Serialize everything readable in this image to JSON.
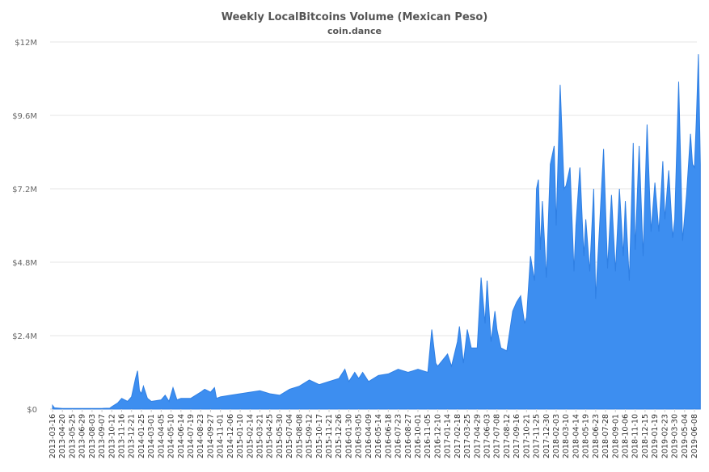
{
  "chart_data": {
    "type": "area",
    "title": "Weekly LocalBitcoins Volume (Mexican Peso)",
    "subtitle": "coin.dance",
    "xlabel": "",
    "ylabel": "",
    "color": "#3d8ef0",
    "grid": "horizontal",
    "legend": "none",
    "ylim": [
      0,
      12000000
    ],
    "y_ticks": [
      {
        "value": 0,
        "label": "$0"
      },
      {
        "value": 2400000,
        "label": "$2.4M"
      },
      {
        "value": 4800000,
        "label": "$4.8M"
      },
      {
        "value": 7200000,
        "label": "$7.2M"
      },
      {
        "value": 9600000,
        "label": "$9.6M"
      },
      {
        "value": 12000000,
        "label": "$12M"
      }
    ],
    "x_tick_labels": [
      "2013-03-16",
      "2013-04-20",
      "2013-05-25",
      "2013-06-29",
      "2013-08-03",
      "2013-09-07",
      "2013-10-12",
      "2013-11-16",
      "2013-12-21",
      "2014-01-25",
      "2014-03-01",
      "2014-04-05",
      "2014-05-10",
      "2014-06-14",
      "2014-07-19",
      "2014-08-23",
      "2014-09-27",
      "2014-11-01",
      "2014-12-06",
      "2015-01-10",
      "2015-02-14",
      "2015-03-21",
      "2015-04-25",
      "2015-05-30",
      "2015-07-04",
      "2015-08-08",
      "2015-09-12",
      "2015-10-17",
      "2015-11-21",
      "2015-12-26",
      "2016-01-30",
      "2016-03-05",
      "2016-04-09",
      "2016-05-14",
      "2016-06-18",
      "2016-07-23",
      "2016-08-27",
      "2016-10-01",
      "2016-11-05",
      "2016-12-10",
      "2017-01-14",
      "2017-02-18",
      "2017-03-25",
      "2017-04-29",
      "2017-06-03",
      "2017-07-08",
      "2017-08-12",
      "2017-09-16",
      "2017-10-21",
      "2017-11-25",
      "2017-12-30",
      "2018-02-03",
      "2018-03-10",
      "2018-04-14",
      "2018-05-19",
      "2018-06-23",
      "2018-07-28",
      "2018-09-01",
      "2018-10-06",
      "2018-11-10",
      "2018-12-15",
      "2019-01-19",
      "2019-02-23",
      "2019-03-30",
      "2019-05-04",
      "2019-06-08"
    ],
    "series": [
      {
        "keypoints": [
          [
            "2013-03-16",
            120000
          ],
          [
            "2013-03-23",
            40000
          ],
          [
            "2013-04-20",
            20000
          ],
          [
            "2013-06-29",
            20000
          ],
          [
            "2013-09-07",
            20000
          ],
          [
            "2013-10-05",
            30000
          ],
          [
            "2013-10-12",
            80000
          ],
          [
            "2013-11-02",
            200000
          ],
          [
            "2013-11-16",
            350000
          ],
          [
            "2013-12-07",
            250000
          ],
          [
            "2013-12-21",
            400000
          ],
          [
            "2014-01-04",
            1000000
          ],
          [
            "2014-01-11",
            1250000
          ],
          [
            "2014-01-18",
            600000
          ],
          [
            "2014-01-25",
            500000
          ],
          [
            "2014-02-01",
            750000
          ],
          [
            "2014-02-15",
            350000
          ],
          [
            "2014-03-01",
            250000
          ],
          [
            "2014-04-05",
            300000
          ],
          [
            "2014-04-19",
            450000
          ],
          [
            "2014-05-03",
            250000
          ],
          [
            "2014-05-17",
            700000
          ],
          [
            "2014-05-31",
            300000
          ],
          [
            "2014-06-14",
            350000
          ],
          [
            "2014-07-19",
            350000
          ],
          [
            "2014-08-23",
            550000
          ],
          [
            "2014-09-06",
            650000
          ],
          [
            "2014-09-27",
            550000
          ],
          [
            "2014-10-11",
            700000
          ],
          [
            "2014-10-18",
            350000
          ],
          [
            "2014-11-01",
            400000
          ],
          [
            "2014-12-06",
            450000
          ],
          [
            "2015-01-10",
            500000
          ],
          [
            "2015-02-14",
            550000
          ],
          [
            "2015-03-21",
            600000
          ],
          [
            "2015-04-25",
            500000
          ],
          [
            "2015-05-30",
            450000
          ],
          [
            "2015-07-04",
            650000
          ],
          [
            "2015-08-08",
            750000
          ],
          [
            "2015-09-12",
            950000
          ],
          [
            "2015-10-17",
            800000
          ],
          [
            "2015-11-21",
            900000
          ],
          [
            "2015-12-26",
            1000000
          ],
          [
            "2016-01-16",
            1300000
          ],
          [
            "2016-01-30",
            900000
          ],
          [
            "2016-02-20",
            1200000
          ],
          [
            "2016-03-05",
            1000000
          ],
          [
            "2016-03-19",
            1200000
          ],
          [
            "2016-04-09",
            900000
          ],
          [
            "2016-05-14",
            1100000
          ],
          [
            "2016-06-18",
            1150000
          ],
          [
            "2016-07-23",
            1300000
          ],
          [
            "2016-08-27",
            1200000
          ],
          [
            "2016-10-01",
            1300000
          ],
          [
            "2016-11-05",
            1200000
          ],
          [
            "2016-11-19",
            2600000
          ],
          [
            "2016-12-03",
            1500000
          ],
          [
            "2016-12-10",
            1400000
          ],
          [
            "2017-01-14",
            1800000
          ],
          [
            "2017-01-28",
            1400000
          ],
          [
            "2017-02-18",
            2200000
          ],
          [
            "2017-02-25",
            2700000
          ],
          [
            "2017-03-11",
            1500000
          ],
          [
            "2017-03-25",
            2600000
          ],
          [
            "2017-04-08",
            2000000
          ],
          [
            "2017-04-29",
            2000000
          ],
          [
            "2017-05-13",
            4300000
          ],
          [
            "2017-05-27",
            2800000
          ],
          [
            "2017-06-03",
            4200000
          ],
          [
            "2017-06-17",
            2200000
          ],
          [
            "2017-07-01",
            3200000
          ],
          [
            "2017-07-08",
            2600000
          ],
          [
            "2017-07-22",
            2000000
          ],
          [
            "2017-08-12",
            1900000
          ],
          [
            "2017-09-02",
            3200000
          ],
          [
            "2017-09-16",
            3500000
          ],
          [
            "2017-09-30",
            3700000
          ],
          [
            "2017-10-14",
            2800000
          ],
          [
            "2017-10-21",
            3000000
          ],
          [
            "2017-11-04",
            5000000
          ],
          [
            "2017-11-18",
            4200000
          ],
          [
            "2017-11-25",
            7200000
          ],
          [
            "2017-12-02",
            7500000
          ],
          [
            "2017-12-09",
            5200000
          ],
          [
            "2017-12-16",
            6800000
          ],
          [
            "2017-12-30",
            4300000
          ],
          [
            "2018-01-13",
            8000000
          ],
          [
            "2018-01-27",
            8600000
          ],
          [
            "2018-02-03",
            6000000
          ],
          [
            "2018-02-17",
            10600000
          ],
          [
            "2018-03-03",
            7200000
          ],
          [
            "2018-03-10",
            7300000
          ],
          [
            "2018-03-24",
            7900000
          ],
          [
            "2018-04-07",
            4500000
          ],
          [
            "2018-04-14",
            6000000
          ],
          [
            "2018-04-28",
            7900000
          ],
          [
            "2018-05-12",
            5000000
          ],
          [
            "2018-05-19",
            6200000
          ],
          [
            "2018-06-02",
            4500000
          ],
          [
            "2018-06-16",
            7200000
          ],
          [
            "2018-06-23",
            3600000
          ],
          [
            "2018-07-07",
            6000000
          ],
          [
            "2018-07-21",
            8500000
          ],
          [
            "2018-08-04",
            4600000
          ],
          [
            "2018-08-18",
            7000000
          ],
          [
            "2018-09-01",
            4500000
          ],
          [
            "2018-09-15",
            7200000
          ],
          [
            "2018-09-29",
            5000000
          ],
          [
            "2018-10-06",
            6800000
          ],
          [
            "2018-10-20",
            4200000
          ],
          [
            "2018-11-03",
            8700000
          ],
          [
            "2018-11-10",
            5200000
          ],
          [
            "2018-11-24",
            8600000
          ],
          [
            "2018-12-08",
            5000000
          ],
          [
            "2018-12-22",
            9300000
          ],
          [
            "2019-01-05",
            5800000
          ],
          [
            "2019-01-19",
            7400000
          ],
          [
            "2019-02-02",
            5800000
          ],
          [
            "2019-02-16",
            8100000
          ],
          [
            "2019-02-23",
            6200000
          ],
          [
            "2019-03-09",
            7800000
          ],
          [
            "2019-03-23",
            5600000
          ],
          [
            "2019-03-30",
            6200000
          ],
          [
            "2019-04-13",
            10700000
          ],
          [
            "2019-04-27",
            5500000
          ],
          [
            "2019-05-11",
            7000000
          ],
          [
            "2019-05-25",
            9000000
          ],
          [
            "2019-06-01",
            8000000
          ],
          [
            "2019-06-08",
            7900000
          ],
          [
            "2019-06-15",
            9500000
          ],
          [
            "2019-06-22",
            11600000
          ],
          [
            "2019-06-29",
            8000000
          ]
        ]
      }
    ]
  }
}
